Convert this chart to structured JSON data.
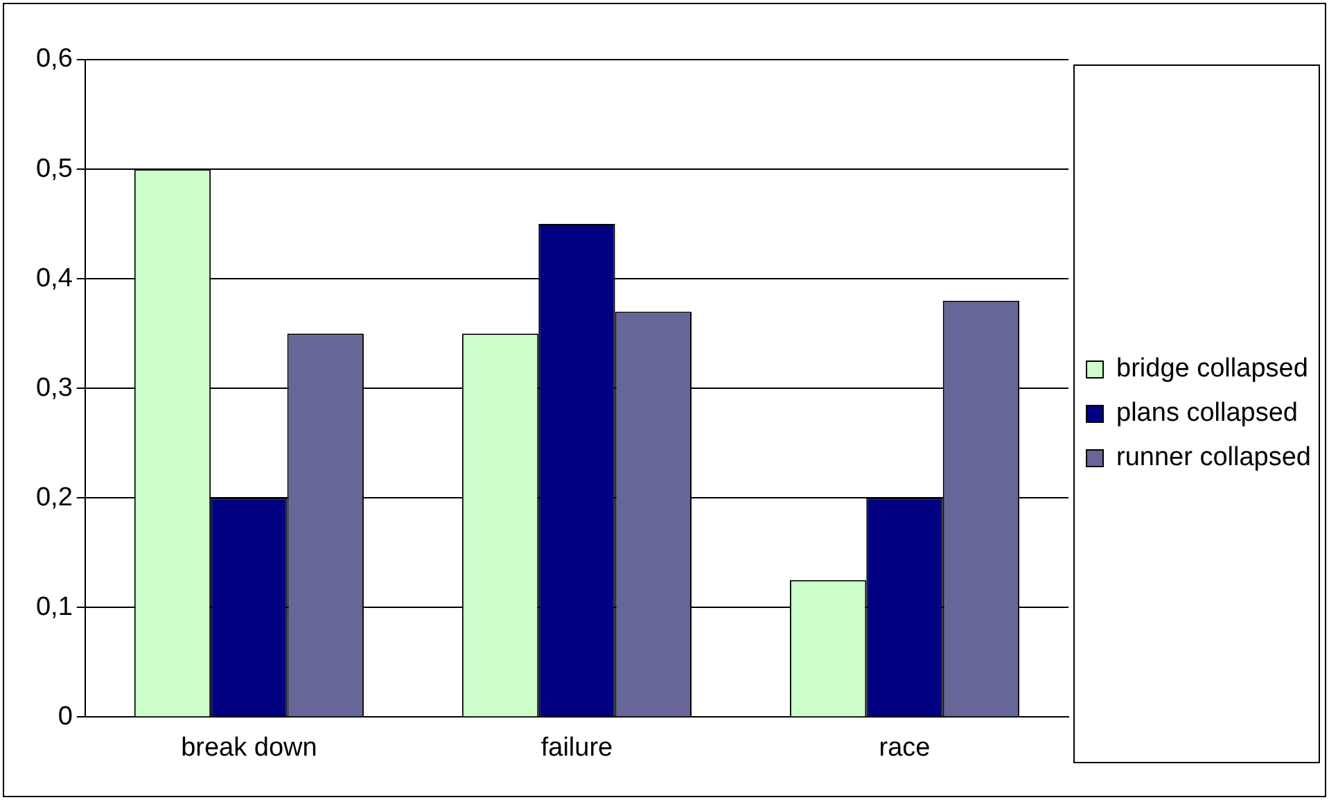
{
  "chart_data": {
    "type": "bar",
    "categories": [
      "break down",
      "failure",
      "race"
    ],
    "series": [
      {
        "name": "bridge collapsed",
        "color": "#ccffcc",
        "values": [
          0.5,
          0.35,
          0.125
        ]
      },
      {
        "name": "plans collapsed",
        "color": "#000080",
        "values": [
          0.2,
          0.45,
          0.2
        ]
      },
      {
        "name": "runner collapsed",
        "color": "#666699",
        "values": [
          0.35,
          0.37,
          0.38
        ]
      }
    ],
    "ylim": [
      0,
      0.6
    ],
    "yticks": [
      {
        "value": 0,
        "label": "0"
      },
      {
        "value": 0.1,
        "label": "0,1"
      },
      {
        "value": 0.2,
        "label": "0,2"
      },
      {
        "value": 0.3,
        "label": "0,3"
      },
      {
        "value": 0.4,
        "label": "0,4"
      },
      {
        "value": 0.5,
        "label": "0,5"
      },
      {
        "value": 0.6,
        "label": "0,6"
      }
    ],
    "grid": "y",
    "legend": "right"
  }
}
